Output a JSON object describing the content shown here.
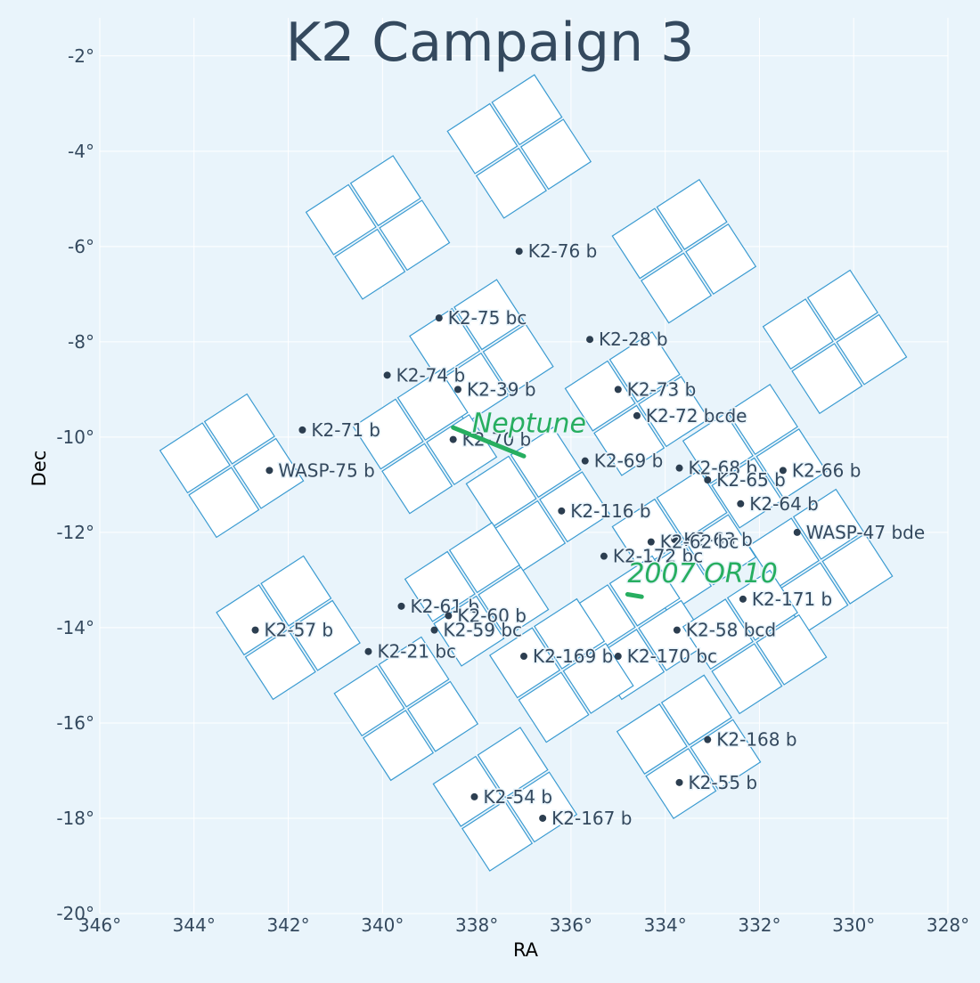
{
  "chart_data": {
    "type": "scatter",
    "title": "K2 Campaign 3",
    "xlabel": "RA",
    "ylabel": "Dec",
    "xlim": [
      346,
      328
    ],
    "ylim": [
      -20,
      -1.2
    ],
    "x_ticks": [
      346,
      344,
      342,
      340,
      338,
      336,
      334,
      332,
      330,
      328
    ],
    "x_tick_labels": [
      "346°",
      "344°",
      "342°",
      "340°",
      "338°",
      "336°",
      "334°",
      "332°",
      "330°",
      "328°"
    ],
    "y_ticks": [
      -2,
      -4,
      -6,
      -8,
      -10,
      -12,
      -14,
      -16,
      -18,
      -20
    ],
    "y_tick_labels": [
      "-2°",
      "-4°",
      "-6°",
      "-8°",
      "-10°",
      "-12°",
      "-14°",
      "-16°",
      "-18°",
      "-20°"
    ],
    "grid": true,
    "colors": {
      "background": "#e9f4fb",
      "grid": "#ffffff",
      "ccd_outline": "#3b9bd1",
      "ccd_fill": "#ffffff",
      "planet_marker": "#2c3e50",
      "text": "#34495e",
      "solar_system": "#27ae60"
    },
    "ccd_modules": [
      {
        "center": [
          340.1,
          -5.6
        ],
        "side": 2.2,
        "angle": -33
      },
      {
        "center": [
          337.1,
          -3.9
        ],
        "side": 2.2,
        "angle": -33
      },
      {
        "center": [
          333.6,
          -6.1
        ],
        "side": 2.2,
        "angle": -33
      },
      {
        "center": [
          330.4,
          -8.0
        ],
        "side": 2.2,
        "angle": -33
      },
      {
        "center": [
          337.9,
          -8.2
        ],
        "side": 2.2,
        "angle": -33
      },
      {
        "center": [
          339.1,
          -10.1
        ],
        "side": 2.2,
        "angle": -33
      },
      {
        "center": [
          334.6,
          -9.3
        ],
        "side": 2.2,
        "angle": -33
      },
      {
        "center": [
          332.1,
          -10.4
        ],
        "side": 2.2,
        "angle": -33
      },
      {
        "center": [
          343.2,
          -10.6
        ],
        "side": 2.2,
        "angle": -33
      },
      {
        "center": [
          336.7,
          -11.3
        ],
        "side": 2.2,
        "angle": -33
      },
      {
        "center": [
          333.6,
          -12.2
        ],
        "side": 2.2,
        "angle": -33
      },
      {
        "center": [
          330.7,
          -12.6
        ],
        "side": 2.2,
        "angle": -33
      },
      {
        "center": [
          338.0,
          -13.3
        ],
        "side": 2.2,
        "angle": -33
      },
      {
        "center": [
          342.0,
          -14.0
        ],
        "side": 2.2,
        "angle": -33
      },
      {
        "center": [
          334.6,
          -14.0
        ],
        "side": 2.2,
        "angle": -33
      },
      {
        "center": [
          332.1,
          -14.3
        ],
        "side": 2.2,
        "angle": -33
      },
      {
        "center": [
          336.2,
          -14.9
        ],
        "side": 2.2,
        "angle": -33
      },
      {
        "center": [
          339.5,
          -15.7
        ],
        "side": 2.2,
        "angle": -33
      },
      {
        "center": [
          333.5,
          -16.5
        ],
        "side": 2.2,
        "angle": -33
      },
      {
        "center": [
          337.4,
          -17.6
        ],
        "side": 2.2,
        "angle": -33
      }
    ],
    "planets": [
      {
        "name": "K2-76 b",
        "ra": 337.1,
        "dec": -6.1
      },
      {
        "name": "K2-75 bc",
        "ra": 338.8,
        "dec": -7.5
      },
      {
        "name": "K2-28 b",
        "ra": 335.6,
        "dec": -7.95
      },
      {
        "name": "K2-74 b",
        "ra": 339.9,
        "dec": -8.7
      },
      {
        "name": "K2-39 b",
        "ra": 338.4,
        "dec": -9.0
      },
      {
        "name": "K2-73 b",
        "ra": 335.0,
        "dec": -9.0
      },
      {
        "name": "K2-72 bcde",
        "ra": 334.6,
        "dec": -9.55
      },
      {
        "name": "K2-71 b",
        "ra": 341.7,
        "dec": -9.85
      },
      {
        "name": "K2-70 b",
        "ra": 338.5,
        "dec": -10.05
      },
      {
        "name": "K2-69 b",
        "ra": 335.7,
        "dec": -10.5
      },
      {
        "name": "K2-68 b",
        "ra": 333.7,
        "dec": -10.65
      },
      {
        "name": "WASP-75 b",
        "ra": 342.4,
        "dec": -10.7
      },
      {
        "name": "K2-66 b",
        "ra": 331.5,
        "dec": -10.7
      },
      {
        "name": "K2-65 b",
        "ra": 333.1,
        "dec": -10.9
      },
      {
        "name": "K2-64 b",
        "ra": 332.4,
        "dec": -11.4
      },
      {
        "name": "K2-116 b",
        "ra": 336.2,
        "dec": -11.55
      },
      {
        "name": "WASP-47 bde",
        "ra": 331.2,
        "dec": -12.0
      },
      {
        "name": "K2-63 b",
        "ra": 333.8,
        "dec": -12.15
      },
      {
        "name": "K2-62 bc",
        "ra": 334.3,
        "dec": -12.2
      },
      {
        "name": "K2-172 bc",
        "ra": 335.3,
        "dec": -12.5
      },
      {
        "name": "K2-61 b",
        "ra": 339.6,
        "dec": -13.55
      },
      {
        "name": "K2-60 b",
        "ra": 338.6,
        "dec": -13.75
      },
      {
        "name": "K2-171 b",
        "ra": 332.35,
        "dec": -13.4
      },
      {
        "name": "K2-59 bc",
        "ra": 338.9,
        "dec": -14.05
      },
      {
        "name": "K2-57 b",
        "ra": 342.7,
        "dec": -14.05
      },
      {
        "name": "K2-58 bcd",
        "ra": 333.75,
        "dec": -14.05
      },
      {
        "name": "K2-21 bc",
        "ra": 340.3,
        "dec": -14.5
      },
      {
        "name": "K2-169 b",
        "ra": 337.0,
        "dec": -14.6
      },
      {
        "name": "K2-170 bc",
        "ra": 335.0,
        "dec": -14.6
      },
      {
        "name": "K2-168 b",
        "ra": 333.1,
        "dec": -16.35
      },
      {
        "name": "K2-55 b",
        "ra": 333.7,
        "dec": -17.25
      },
      {
        "name": "K2-54 b",
        "ra": 338.05,
        "dec": -17.55
      },
      {
        "name": "K2-167 b",
        "ra": 336.6,
        "dec": -18.0
      }
    ],
    "solar_system_objects": [
      {
        "name": "Neptune",
        "track": [
          [
            338.5,
            -9.8
          ],
          [
            337.0,
            -10.4
          ]
        ],
        "label_at": [
          338.1,
          -9.9
        ]
      },
      {
        "name": "2007 OR10",
        "track": [
          [
            334.8,
            -13.3
          ],
          [
            334.5,
            -13.35
          ]
        ],
        "label_at": [
          334.8,
          -13.05
        ]
      }
    ]
  }
}
